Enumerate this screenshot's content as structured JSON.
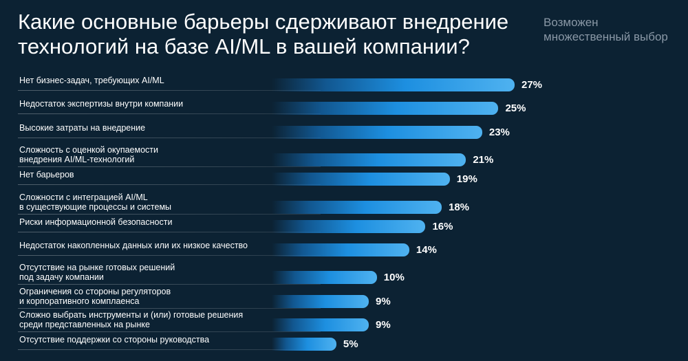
{
  "header": {
    "title": "Какие основные барьеры сдерживают внедрение технологий на базе AI/ML в вашей компании?",
    "note": "Возможен множественный выбор"
  },
  "chart_data": {
    "type": "bar",
    "orientation": "horizontal",
    "title": "Какие основные барьеры сдерживают внедрение технологий на базе AI/ML в вашей компании?",
    "value_suffix": "%",
    "xlim": [
      0,
      27
    ],
    "categories": [
      "Нет бизнес-задач, требующих AI/ML",
      "Недостаток экспертизы внутри компании",
      "Высокие затраты на внедрение",
      "Сложность с оценкой окупаемости\nвнедрения AI/ML-технологий",
      "Нет барьеров",
      "Сложности с интеграцией AI/ML\nв существующие процессы и системы",
      "Риски информационной безопасности",
      "Недостаток накопленных данных или их низкое качество",
      "Отсутствие на рынке готовых решений\nпод задачу компании",
      "Ограничения со стороны регуляторов\nи корпоративного комплаенса",
      "Сложно выбрать инструменты и (или) готовые решения\nсреди представленных на рынке",
      "Отсутствие поддержки со стороны руководства"
    ],
    "values": [
      27,
      25,
      23,
      21,
      19,
      18,
      16,
      14,
      10,
      9,
      9,
      5
    ],
    "value_labels": [
      "27%",
      "25%",
      "23%",
      "21%",
      "19%",
      "18%",
      "16%",
      "14%",
      "10%",
      "9%",
      "9%",
      "5%"
    ],
    "colors": {
      "bar_start": "#1478d2",
      "bar_end": "#4fb2f0",
      "background": "#0c2233"
    }
  }
}
